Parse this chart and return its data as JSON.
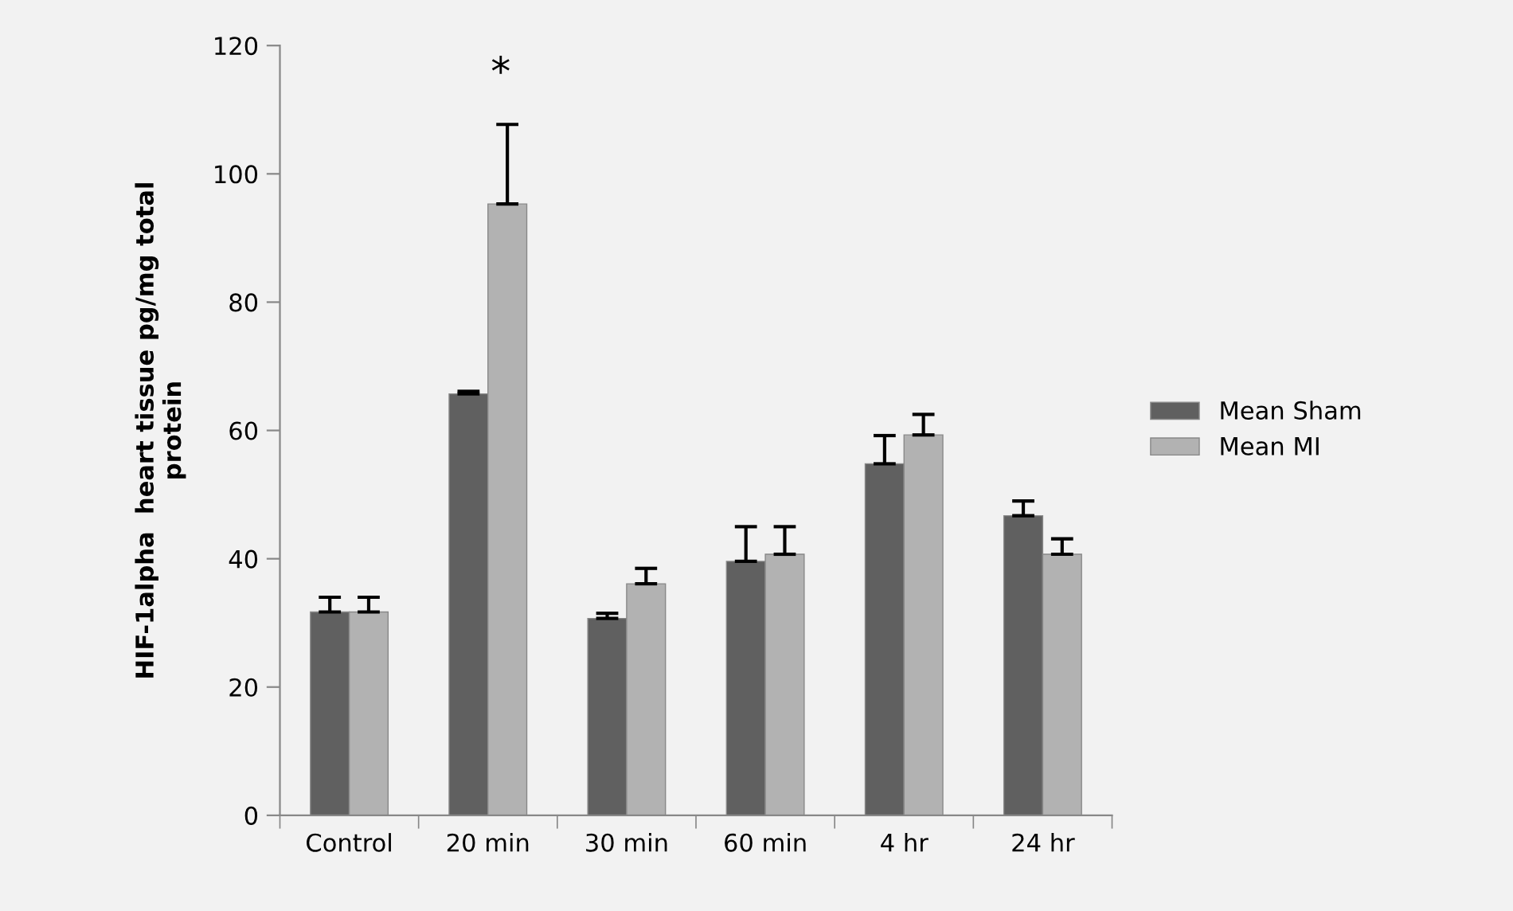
{
  "chart_data": {
    "type": "bar",
    "ylabel": "HIF-1alpha  heart tissue pg/mg total\nprotein",
    "categories": [
      "Control",
      "20 min",
      "30 min",
      "60 min",
      "4 hr",
      "24 hr"
    ],
    "series": [
      {
        "name": "Mean Sham",
        "color": "#606060",
        "values": [
          31.7,
          65.7,
          30.7,
          39.6,
          54.8,
          46.7
        ],
        "errors": [
          [
            31.7,
            34
          ],
          [
            65.7,
            66.1
          ],
          [
            30.7,
            31.5
          ],
          [
            39.6,
            45
          ],
          [
            54.8,
            59.2
          ],
          [
            46.7,
            49
          ]
        ]
      },
      {
        "name": "Mean MI",
        "color": "#b2b2b2",
        "values": [
          31.7,
          95.3,
          36.1,
          40.7,
          59.3,
          40.7
        ],
        "errors": [
          [
            31.7,
            34
          ],
          [
            95.3,
            107.7
          ],
          [
            36.1,
            38.5
          ],
          [
            40.7,
            45
          ],
          [
            59.3,
            62.5
          ],
          [
            40.7,
            43.1
          ]
        ]
      }
    ],
    "ylim": [
      0,
      120
    ],
    "yticks": [
      0,
      20,
      40,
      60,
      80,
      100,
      120
    ],
    "annotations": [
      "*"
    ],
    "grid": false,
    "legend": "right"
  }
}
